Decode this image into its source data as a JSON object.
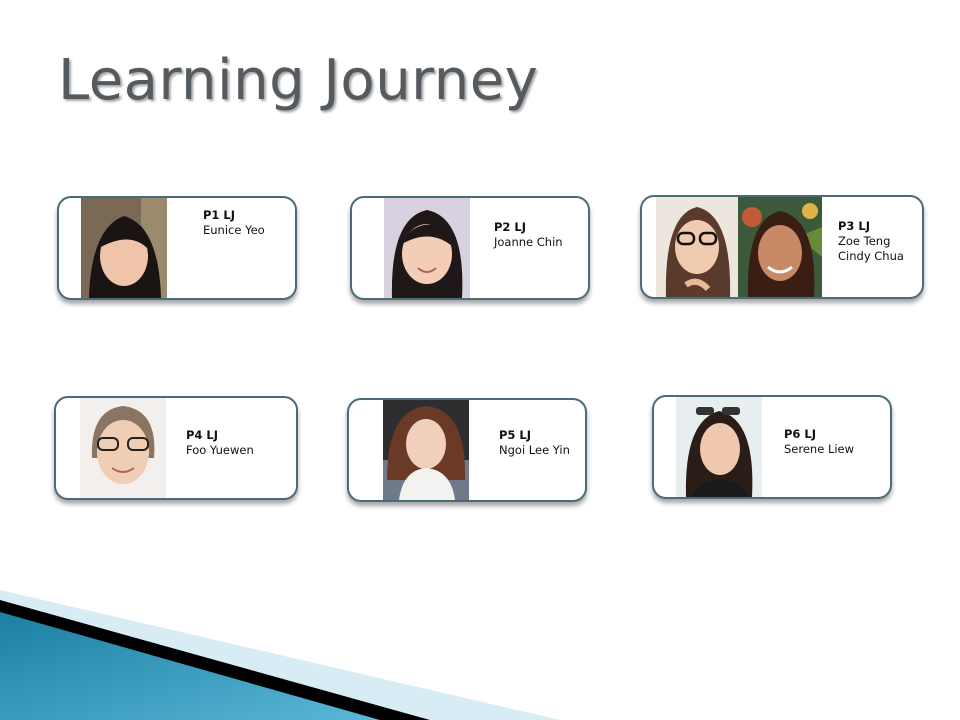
{
  "slide": {
    "title": "Learning Journey"
  },
  "cards": [
    {
      "code": "P1 LJ",
      "names": [
        "Eunice Yeo"
      ]
    },
    {
      "code": "P2 LJ",
      "names": [
        "Joanne Chin"
      ]
    },
    {
      "code": "P3 LJ",
      "names": [
        "Zoe Teng",
        "Cindy Chua"
      ]
    },
    {
      "code": "P4 LJ",
      "names": [
        "Foo Yuewen"
      ]
    },
    {
      "code": "P5 LJ",
      "names": [
        "Ngoi Lee Yin"
      ]
    },
    {
      "code": "P6 LJ",
      "names": [
        "Serene Liew"
      ]
    }
  ],
  "colors": {
    "title": "#555a5f",
    "card_border": "#4a6b7a",
    "banner_teal": "#2a8fb0",
    "banner_dark": "#000000"
  }
}
